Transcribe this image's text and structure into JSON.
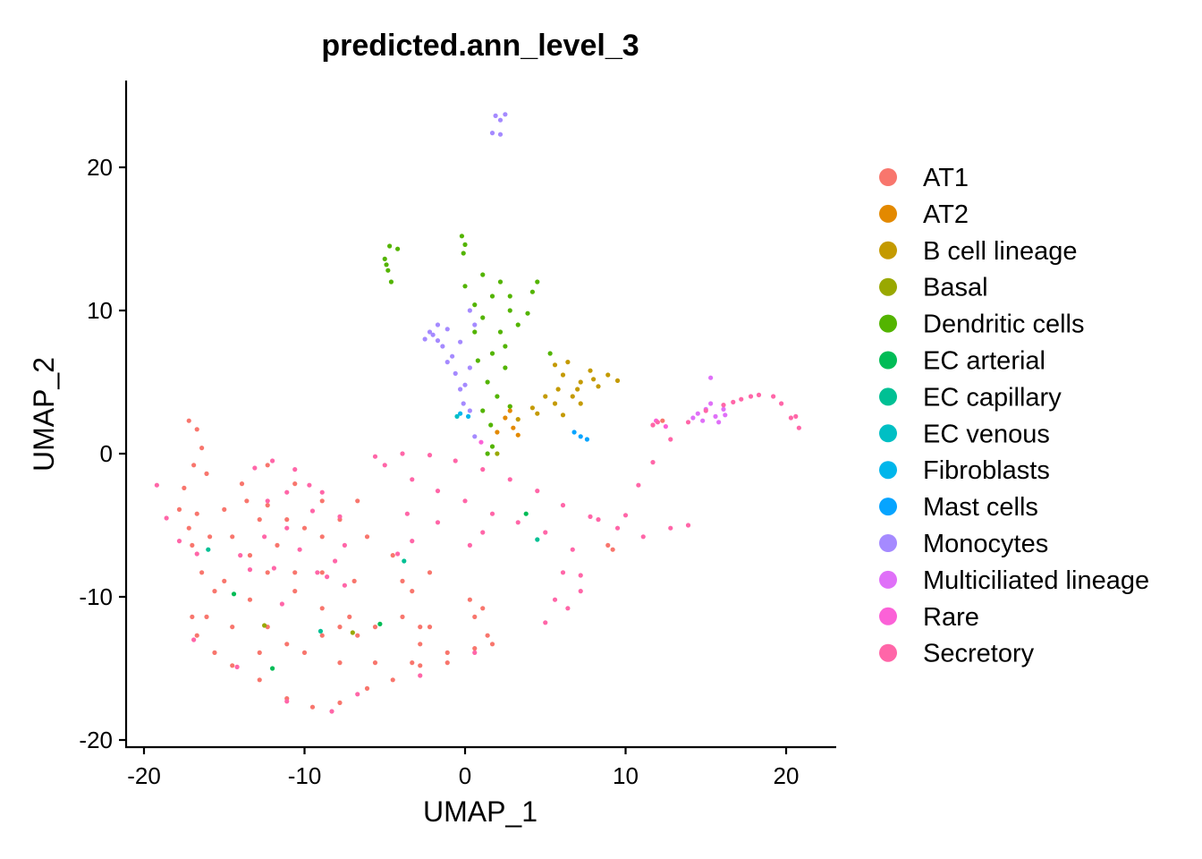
{
  "chart_data": {
    "type": "scatter",
    "title": "predicted.ann_level_3",
    "xlabel": "UMAP_1",
    "ylabel": "UMAP_2",
    "xlim": [
      -21.1,
      23.1
    ],
    "ylim": [
      -20.5,
      26
    ],
    "xticks": [
      -20,
      -10,
      0,
      10,
      20
    ],
    "yticks": [
      -20,
      -10,
      0,
      10,
      20
    ],
    "xtick_labels": [
      "-20",
      "-10",
      "0",
      "10",
      "20"
    ],
    "ytick_labels": [
      "-20",
      "-10",
      "0",
      "10",
      "20"
    ],
    "grid": false,
    "legend_position": "right",
    "series": [
      {
        "name": "AT1",
        "color": "#F8766D",
        "points": [
          [
            -17.2,
            2.3
          ],
          [
            -16.7,
            1.7
          ],
          [
            -16.4,
            0.4
          ],
          [
            -16.9,
            -0.8
          ],
          [
            -16.1,
            -1.4
          ],
          [
            -17.5,
            -2.4
          ],
          [
            -17.8,
            -3.9
          ],
          [
            -17.2,
            -5.2
          ],
          [
            -17.0,
            -6.4
          ],
          [
            -16.4,
            -8.3
          ],
          [
            -15.6,
            -9.6
          ],
          [
            -17.0,
            -11.4
          ],
          [
            -16.7,
            -12.7
          ],
          [
            -15.6,
            -13.9
          ],
          [
            -14.5,
            -14.8
          ],
          [
            -12.8,
            -15.8
          ],
          [
            -11.1,
            -17.1
          ],
          [
            -9.5,
            -17.7
          ],
          [
            -7.8,
            -17.4
          ],
          [
            -6.1,
            -16.4
          ],
          [
            -4.5,
            -15.8
          ],
          [
            -2.8,
            -14.8
          ],
          [
            -1.1,
            -13.9
          ],
          [
            0.6,
            -13.6
          ],
          [
            1.7,
            -13.3
          ],
          [
            1.4,
            -12.7
          ],
          [
            0.6,
            -11.4
          ],
          [
            0.3,
            -10.2
          ],
          [
            1.1,
            -10.8
          ],
          [
            -16.7,
            -4.2
          ],
          [
            -15.0,
            -3.9
          ],
          [
            -13.6,
            -3.3
          ],
          [
            -12.3,
            -3.6
          ],
          [
            -11.1,
            -4.6
          ],
          [
            -12.8,
            -4.6
          ],
          [
            -14.5,
            -5.8
          ],
          [
            -13.4,
            -7.1
          ],
          [
            -12.3,
            -8.3
          ],
          [
            -10.6,
            -9.6
          ],
          [
            -8.9,
            -10.8
          ],
          [
            -7.8,
            -12.1
          ],
          [
            -6.7,
            -12.7
          ],
          [
            -7.2,
            -11.4
          ],
          [
            -5.6,
            -12.1
          ],
          [
            -3.9,
            -11.4
          ],
          [
            -2.8,
            -12.1
          ],
          [
            -12.3,
            -12.1
          ],
          [
            -10.0,
            -13.9
          ],
          [
            -7.8,
            -14.6
          ],
          [
            -5.6,
            -14.6
          ],
          [
            -3.3,
            -14.6
          ],
          [
            -1.1,
            -14.6
          ],
          [
            -13.9,
            -2.1
          ],
          [
            -12.3,
            -0.8
          ],
          [
            -10.6,
            -2.1
          ],
          [
            -10.0,
            -5.2
          ],
          [
            -8.9,
            -5.8
          ],
          [
            -11.7,
            -6.4
          ],
          [
            -10.6,
            -8.3
          ],
          [
            -15.0,
            -8.9
          ],
          [
            -13.4,
            -10.2
          ],
          [
            -15.9,
            -5.8
          ],
          [
            -3.9,
            -8.9
          ],
          [
            -3.3,
            -9.6
          ],
          [
            -2.2,
            -8.3
          ],
          [
            -4.5,
            -7.1
          ],
          [
            -6.1,
            -5.8
          ],
          [
            -7.8,
            -4.6
          ],
          [
            -6.7,
            -3.3
          ],
          [
            -8.9,
            -3.3
          ],
          [
            -14.5,
            -12.1
          ],
          [
            -11.1,
            -13.3
          ],
          [
            -12.8,
            -13.9
          ],
          [
            -8.9,
            -12.7
          ],
          [
            -16.1,
            -11.4
          ],
          [
            -2.8,
            -13.3
          ],
          [
            -2.2,
            -12.1
          ],
          [
            -6.9,
            -8.9
          ],
          [
            -8.9,
            -8.3
          ],
          [
            8.9,
            -6.4
          ],
          [
            9.2,
            -6.7
          ],
          [
            11.7,
            2.0
          ],
          [
            12.3,
            2.3
          ]
        ]
      },
      {
        "name": "AT2",
        "color": "#E38900",
        "points": [
          [
            2.5,
            2.5
          ],
          [
            3.0,
            1.8
          ],
          [
            3.3,
            1.3
          ],
          [
            2.0,
            1.5
          ],
          [
            2.8,
            3.0
          ]
        ]
      },
      {
        "name": "B cell lineage",
        "color": "#C49A00",
        "points": [
          [
            3.3,
            2.4
          ],
          [
            4.5,
            2.8
          ],
          [
            5.6,
            3.5
          ],
          [
            6.7,
            4.0
          ],
          [
            7.2,
            5.0
          ],
          [
            6.1,
            5.5
          ],
          [
            5.6,
            6.2
          ],
          [
            7.8,
            5.8
          ],
          [
            8.9,
            5.5
          ],
          [
            9.5,
            5.1
          ],
          [
            8.3,
            4.7
          ],
          [
            7.2,
            3.5
          ],
          [
            6.1,
            2.7
          ],
          [
            5.0,
            4.0
          ],
          [
            4.2,
            3.2
          ],
          [
            2.8,
            3.3
          ],
          [
            6.4,
            6.4
          ],
          [
            7.0,
            4.5
          ],
          [
            8.0,
            5.2
          ],
          [
            5.8,
            4.5
          ]
        ]
      },
      {
        "name": "Basal",
        "color": "#99A800",
        "points": [
          [
            2.0,
            0.0
          ],
          [
            -12.5,
            -12.0
          ],
          [
            -7.0,
            -12.5
          ]
        ]
      },
      {
        "name": "Dendritic cells",
        "color": "#53B400",
        "points": [
          [
            0.0,
            11.7
          ],
          [
            1.1,
            12.5
          ],
          [
            2.2,
            12.0
          ],
          [
            1.7,
            11.0
          ],
          [
            0.6,
            10.4
          ],
          [
            2.8,
            10.0
          ],
          [
            4.2,
            11.3
          ],
          [
            4.5,
            12.0
          ],
          [
            3.3,
            9.0
          ],
          [
            2.2,
            8.5
          ],
          [
            1.7,
            7.0
          ],
          [
            2.5,
            6.0
          ],
          [
            1.4,
            5.0
          ],
          [
            2.0,
            4.0
          ],
          [
            1.1,
            3.0
          ],
          [
            1.6,
            2.0
          ],
          [
            1.7,
            0.5
          ],
          [
            2.8,
            3.3
          ],
          [
            2.5,
            7.5
          ],
          [
            0.6,
            8.5
          ],
          [
            3.9,
            9.8
          ],
          [
            1.1,
            9.5
          ],
          [
            0.8,
            6.5
          ],
          [
            2.8,
            11.0
          ],
          [
            1.4,
            0.0
          ],
          [
            -4.7,
            14.5
          ],
          [
            -5.0,
            13.6
          ],
          [
            -4.8,
            12.8
          ],
          [
            -4.6,
            12.0
          ],
          [
            -4.2,
            14.3
          ],
          [
            -4.9,
            13.2
          ],
          [
            -0.2,
            15.2
          ],
          [
            0.0,
            14.6
          ],
          [
            -0.1,
            14.0
          ],
          [
            5.3,
            7.0
          ]
        ]
      },
      {
        "name": "EC arterial",
        "color": "#00BC56",
        "points": [
          [
            -12.0,
            -15.0
          ],
          [
            -5.3,
            -11.9
          ],
          [
            -14.4,
            -9.8
          ],
          [
            3.8,
            -4.2
          ]
        ]
      },
      {
        "name": "EC capillary",
        "color": "#00C094",
        "points": [
          [
            -3.8,
            -7.5
          ],
          [
            -9.0,
            -12.4
          ],
          [
            4.5,
            -6.0
          ],
          [
            -16.0,
            -6.7
          ]
        ]
      },
      {
        "name": "EC venous",
        "color": "#00BFC4",
        "points": [
          [
            -0.5,
            2.6
          ]
        ]
      },
      {
        "name": "Fibroblasts",
        "color": "#00B6EB",
        "points": [
          [
            0.2,
            2.6
          ],
          [
            -0.3,
            2.8
          ]
        ]
      },
      {
        "name": "Mast cells",
        "color": "#06A4FF",
        "points": [
          [
            6.8,
            1.5
          ],
          [
            7.2,
            1.2
          ],
          [
            7.6,
            1.0
          ]
        ]
      },
      {
        "name": "Monocytes",
        "color": "#A58AFF",
        "points": [
          [
            -2.2,
            8.5
          ],
          [
            -1.7,
            9.0
          ],
          [
            -1.1,
            8.7
          ],
          [
            -2.5,
            8.0
          ],
          [
            -1.4,
            7.5
          ],
          [
            -0.8,
            6.8
          ],
          [
            -0.6,
            5.6
          ],
          [
            -0.3,
            4.5
          ],
          [
            -0.1,
            3.5
          ],
          [
            -1.7,
            7.9
          ],
          [
            -0.3,
            7.8
          ],
          [
            0.3,
            6.0
          ],
          [
            0.0,
            4.8
          ],
          [
            0.3,
            3.0
          ],
          [
            0.6,
            1.2
          ],
          [
            -2.0,
            8.3
          ],
          [
            -1.1,
            6.4
          ],
          [
            0.6,
            9.0
          ],
          [
            0.3,
            10.0
          ],
          [
            1.9,
            23.6
          ],
          [
            2.2,
            23.3
          ],
          [
            2.5,
            23.7
          ],
          [
            2.2,
            22.3
          ],
          [
            1.7,
            22.4
          ]
        ]
      },
      {
        "name": "Multiciliated lineage",
        "color": "#DF70F8",
        "points": [
          [
            14.5,
            2.8
          ],
          [
            15.0,
            3.1
          ],
          [
            15.6,
            2.6
          ],
          [
            16.1,
            3.1
          ],
          [
            15.3,
            3.5
          ],
          [
            14.8,
            2.3
          ],
          [
            15.8,
            2.2
          ],
          [
            15.3,
            5.3
          ],
          [
            14.2,
            2.5
          ],
          [
            16.2,
            2.7
          ]
        ]
      },
      {
        "name": "Rare",
        "color": "#FB61D7",
        "points": [
          [
            11.9,
            2.3
          ],
          [
            12.5,
            1.9
          ],
          [
            1.0,
            0.8
          ]
        ]
      },
      {
        "name": "Secretory",
        "color": "#FF66A8",
        "points": [
          [
            -5.6,
            -0.2
          ],
          [
            -3.9,
            0.0
          ],
          [
            -2.2,
            -0.1
          ],
          [
            -0.6,
            -0.5
          ],
          [
            1.1,
            -1.1
          ],
          [
            2.8,
            -1.8
          ],
          [
            4.5,
            -2.6
          ],
          [
            6.1,
            -3.6
          ],
          [
            7.8,
            -4.4
          ],
          [
            9.5,
            -5.2
          ],
          [
            11.1,
            -5.8
          ],
          [
            12.8,
            -5.2
          ],
          [
            13.9,
            -5.0
          ],
          [
            10.0,
            -4.3
          ],
          [
            8.3,
            -4.6
          ],
          [
            -5.0,
            -0.8
          ],
          [
            -3.3,
            -1.8
          ],
          [
            -1.7,
            -2.6
          ],
          [
            0.0,
            -3.3
          ],
          [
            1.7,
            -4.2
          ],
          [
            3.3,
            -4.8
          ],
          [
            5.0,
            -5.5
          ],
          [
            6.7,
            -6.7
          ],
          [
            7.2,
            -8.5
          ],
          [
            7.2,
            -9.6
          ],
          [
            6.4,
            -10.8
          ],
          [
            5.0,
            -11.8
          ],
          [
            5.6,
            -10.2
          ],
          [
            6.1,
            -8.3
          ],
          [
            -3.6,
            -4.2
          ],
          [
            -3.3,
            -6.1
          ],
          [
            -4.2,
            -7.0
          ],
          [
            -1.7,
            -4.8
          ],
          [
            0.3,
            -6.4
          ],
          [
            1.1,
            -5.5
          ],
          [
            -9.5,
            -4.0
          ],
          [
            -8.9,
            -2.7
          ],
          [
            -7.8,
            -4.4
          ],
          [
            -7.5,
            -6.4
          ],
          [
            -8.6,
            -8.6
          ],
          [
            -7.5,
            -9.2
          ],
          [
            -8.1,
            -7.5
          ],
          [
            -9.2,
            -8.3
          ],
          [
            -10.3,
            -6.7
          ],
          [
            -11.1,
            -5.2
          ],
          [
            -12.3,
            -3.3
          ],
          [
            -13.1,
            -1.0
          ],
          [
            -12.0,
            -0.5
          ],
          [
            -10.6,
            -1.1
          ],
          [
            -9.7,
            -2.2
          ],
          [
            -11.1,
            -2.7
          ],
          [
            -12.5,
            -5.8
          ],
          [
            -14.0,
            -7.1
          ],
          [
            -13.4,
            -8.1
          ],
          [
            -11.9,
            -8.0
          ],
          [
            -11.4,
            -10.5
          ],
          [
            -16.7,
            -7.0
          ],
          [
            -18.6,
            -4.5
          ],
          [
            -19.2,
            -2.2
          ],
          [
            -17.8,
            -6.1
          ],
          [
            -16.9,
            -13.0
          ],
          [
            -14.2,
            -14.9
          ],
          [
            -11.1,
            -17.3
          ],
          [
            -8.3,
            -18.0
          ],
          [
            -6.7,
            -16.8
          ],
          [
            -2.8,
            -15.5
          ],
          [
            0.6,
            -13.9
          ],
          [
            10.8,
            -2.2
          ],
          [
            11.7,
            -0.6
          ],
          [
            12.8,
            1.0
          ],
          [
            13.9,
            2.2
          ],
          [
            15.0,
            3.0
          ],
          [
            16.1,
            3.4
          ],
          [
            17.2,
            3.8
          ],
          [
            18.3,
            4.1
          ],
          [
            19.2,
            4.0
          ],
          [
            19.7,
            3.5
          ],
          [
            20.3,
            2.5
          ],
          [
            20.8,
            1.8
          ],
          [
            20.6,
            2.6
          ],
          [
            16.7,
            3.6
          ],
          [
            17.8,
            4.0
          ],
          [
            11.7,
            2.0
          ],
          [
            12.0,
            2.2
          ]
        ]
      }
    ]
  }
}
